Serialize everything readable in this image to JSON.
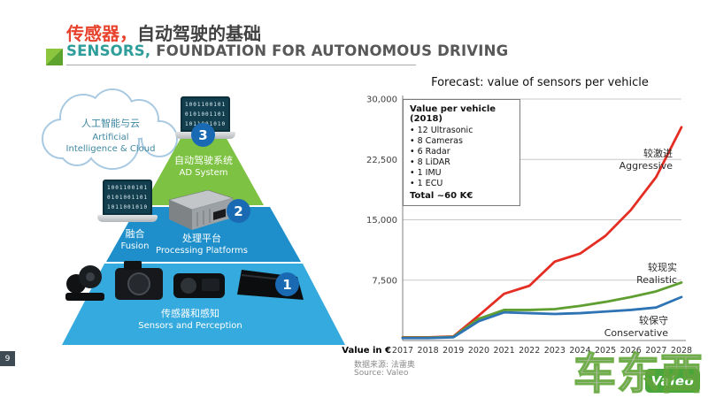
{
  "header": {
    "title_zh_red": "传感器，",
    "title_zh_dark": "自动驾驶的基础",
    "title_en_teal": "SENSORS,",
    "title_en_dark": " FOUNDATION FOR AUTONOMOUS DRIVING"
  },
  "pyramid": {
    "cloud": {
      "zh": "人工智能与云",
      "en1": "Artificial",
      "en2": "Intelligence & Cloud"
    },
    "binary": [
      "1001100101",
      "0101001101",
      "1011001010"
    ],
    "levels": [
      {
        "num": "3",
        "zh": "自动驾驶系统",
        "en": "AD System"
      },
      {
        "num": "2",
        "zh": "处理平台",
        "en": "Processing Platforms"
      },
      {
        "num": "1",
        "zh": "传感器和感知",
        "en": "Sensors and Perception"
      }
    ],
    "fusion_zh": "融合",
    "fusion_en": "Fusion"
  },
  "chart_data": {
    "type": "line",
    "title": "Forecast: value of sensors per vehicle",
    "x": [
      2017,
      2018,
      2019,
      2020,
      2021,
      2022,
      2023,
      2024,
      2025,
      2026,
      2027,
      2028
    ],
    "ylim": [
      0,
      30000
    ],
    "yticks": [
      7500,
      15000,
      22500,
      30000
    ],
    "ytick_labels": [
      "7,500",
      "15,000",
      "22,500",
      "30,000"
    ],
    "value_label": "Value in €",
    "grid": true,
    "legend_position": "right-of-lines",
    "series": [
      {
        "label_zh": "较激进",
        "label_en": "Aggressive",
        "color": "#e42e24",
        "values": [
          400,
          400,
          500,
          3100,
          5800,
          6800,
          9800,
          10800,
          13000,
          16200,
          20300,
          26500
        ]
      },
      {
        "label_zh": "较现实",
        "label_en": "Realistic",
        "color": "#5f9e31",
        "values": [
          350,
          350,
          450,
          2700,
          3800,
          3800,
          3900,
          4300,
          4800,
          5400,
          6100,
          7200
        ]
      },
      {
        "label_zh": "较保守",
        "label_en": "Conservative",
        "color": "#2e74b5",
        "values": [
          300,
          300,
          400,
          2400,
          3500,
          3400,
          3300,
          3400,
          3600,
          3800,
          4100,
          5400
        ]
      }
    ],
    "annotation_box": {
      "title": "Value per vehicle (2018)",
      "items": [
        "12 Ultrasonic",
        "8 Cameras",
        "6 Radar",
        "8 LiDAR",
        "1 IMU",
        "1 ECU"
      ],
      "total": "Total ~60 K€"
    }
  },
  "footer": {
    "page_number": "9",
    "source_zh": "数据来源: 法雷奥",
    "source_en": "Source: Valeo",
    "logo_text": "Valeo",
    "watermark": "车东西"
  }
}
